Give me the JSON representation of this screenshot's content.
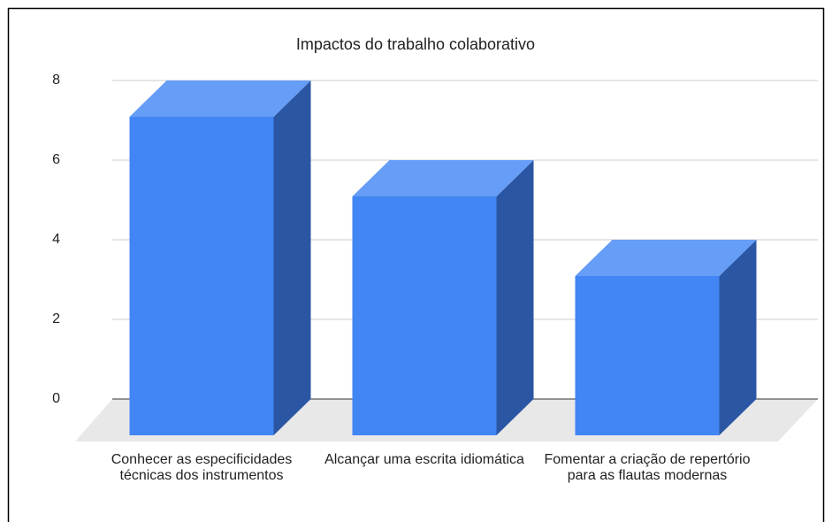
{
  "chart_data": {
    "type": "bar3d",
    "title": "Impactos do trabalho colaborativo",
    "categories": [
      "Conhecer as especificidades técnicas dos instrumentos",
      "Alcançar uma escrita idiomática",
      "Fomentar a criação de repertório para as flautas modernas"
    ],
    "values": [
      8,
      6,
      4
    ],
    "color": "#4285f4",
    "ylim": [
      0,
      8
    ],
    "yticks": [
      0,
      2,
      4,
      6,
      8
    ],
    "grid": true
  }
}
